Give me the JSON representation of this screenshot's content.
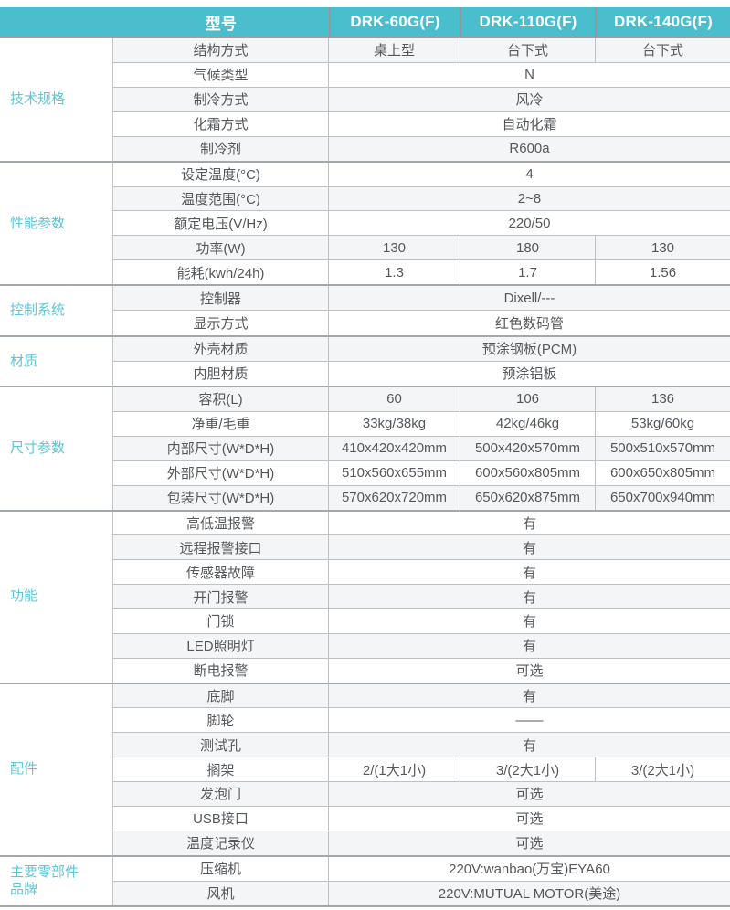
{
  "colors": {
    "header_bg": "#4abecd",
    "header_text": "#ffffff",
    "category_text": "#5fc6d4",
    "body_text": "#55585b",
    "alt_row_bg": "#f4f5f6"
  },
  "header": {
    "model_label": "型号",
    "models": [
      "DRK-60G(F)",
      "DRK-110G(F)",
      "DRK-140G(F)"
    ]
  },
  "groups": [
    {
      "category": "技术规格",
      "rows": [
        {
          "label": "结构方式",
          "values": [
            "桌上型",
            "台下式",
            "台下式"
          ]
        },
        {
          "label": "气候类型",
          "values": [
            "N"
          ]
        },
        {
          "label": "制冷方式",
          "values": [
            "风冷"
          ]
        },
        {
          "label": "化霜方式",
          "values": [
            "自动化霜"
          ]
        },
        {
          "label": "制冷剂",
          "values": [
            "R600a"
          ]
        }
      ]
    },
    {
      "category": "性能参数",
      "rows": [
        {
          "label": "设定温度(°C)",
          "values": [
            "4"
          ]
        },
        {
          "label": "温度范围(°C)",
          "values": [
            "2~8"
          ]
        },
        {
          "label": "额定电压(V/Hz)",
          "values": [
            "220/50"
          ]
        },
        {
          "label": "功率(W)",
          "values": [
            "130",
            "180",
            "130"
          ]
        },
        {
          "label": "能耗(kwh/24h)",
          "values": [
            "1.3",
            "1.7",
            "1.56"
          ]
        }
      ]
    },
    {
      "category": "控制系统",
      "rows": [
        {
          "label": "控制器",
          "values": [
            "Dixell/---"
          ]
        },
        {
          "label": "显示方式",
          "values": [
            "红色数码管"
          ]
        }
      ]
    },
    {
      "category": "材质",
      "rows": [
        {
          "label": "外壳材质",
          "values": [
            "预涂钢板(PCM)"
          ]
        },
        {
          "label": "内胆材质",
          "values": [
            "预涂铝板"
          ]
        }
      ]
    },
    {
      "category": "尺寸参数",
      "rows": [
        {
          "label": "容积(L)",
          "values": [
            "60",
            "106",
            "136"
          ]
        },
        {
          "label": "净重/毛重",
          "values": [
            "33kg/38kg",
            "42kg/46kg",
            "53kg/60kg"
          ]
        },
        {
          "label": "内部尺寸(W*D*H)",
          "values": [
            "410x420x420mm",
            "500x420x570mm",
            "500x510x570mm"
          ]
        },
        {
          "label": "外部尺寸(W*D*H)",
          "values": [
            "510x560x655mm",
            "600x560x805mm",
            "600x650x805mm"
          ]
        },
        {
          "label": "包装尺寸(W*D*H)",
          "values": [
            "570x620x720mm",
            "650x620x875mm",
            "650x700x940mm"
          ]
        }
      ]
    },
    {
      "category": "功能",
      "rows": [
        {
          "label": "高低温报警",
          "values": [
            "有"
          ]
        },
        {
          "label": "远程报警接口",
          "values": [
            "有"
          ]
        },
        {
          "label": "传感器故障",
          "values": [
            "有"
          ]
        },
        {
          "label": "开门报警",
          "values": [
            "有"
          ]
        },
        {
          "label": "门锁",
          "values": [
            "有"
          ]
        },
        {
          "label": "LED照明灯",
          "values": [
            "有"
          ]
        },
        {
          "label": "断电报警",
          "values": [
            "可选"
          ]
        }
      ]
    },
    {
      "category": "配件",
      "rows": [
        {
          "label": "底脚",
          "values": [
            "有"
          ]
        },
        {
          "label": "脚轮",
          "values": [
            "——"
          ]
        },
        {
          "label": "测试孔",
          "values": [
            "有"
          ]
        },
        {
          "label": "搁架",
          "values": [
            "2/(1大1小)",
            "3/(2大1小)",
            "3/(2大1小)"
          ]
        },
        {
          "label": "发泡门",
          "values": [
            "可选"
          ]
        },
        {
          "label": "USB接口",
          "values": [
            "可选"
          ]
        },
        {
          "label": "温度记录仪",
          "values": [
            "可选"
          ]
        }
      ]
    },
    {
      "category": "主要零部件\n品牌",
      "rows": [
        {
          "label": "压缩机",
          "values": [
            "220V:wanbao(万宝)EYA60"
          ]
        },
        {
          "label": "风机",
          "values": [
            "220V:MUTUAL MOTOR(美途)"
          ]
        }
      ]
    }
  ]
}
